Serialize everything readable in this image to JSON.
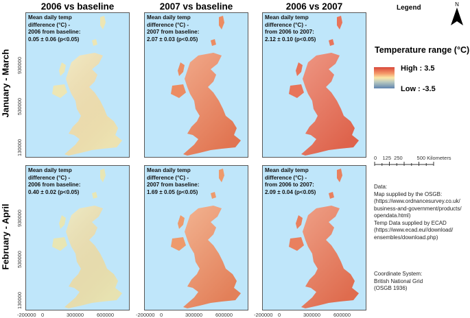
{
  "columns": [
    "2006 vs baseline",
    "2007 vs baseline",
    "2006 vs 2007"
  ],
  "rows": [
    "January - March",
    "February - April"
  ],
  "panels": [
    [
      "Mean daily temp\ndifference (°C) -\n2006 from baseline:\n0.05 ± 0.06 (p<0.05)",
      "Mean daily temp\ndifference (°C) -\n2007 from baseline:\n2.07 ± 0.03 (p<0.05)",
      "Mean daily temp\ndifference (°C) -\nfrom 2006 to 2007:\n2.12 ± 0.10 (p<0.05)"
    ],
    [
      "Mean daily temp\ndifference (°C) -\n2006 from baseline:\n0.40 ± 0.02 (p<0.05)",
      "Mean daily temp\ndifference (°C) -\n2007 from baseline:\n1.69 ± 0.05 (p<0.05)",
      "Mean daily temp\ndifference (°C) -\nfrom 2006 to 2007:\n2.09 ± 0.04 (p<0.05)"
    ]
  ],
  "panel_colors": [
    [
      "#ede6b4",
      "#ec8c62",
      "#e8745a"
    ],
    [
      "#e8e6b4",
      "#ee9a6c",
      "#e9805e"
    ]
  ],
  "y_ticks": [
    "930000",
    "530000",
    "130000"
  ],
  "x_ticks": [
    "-200000",
    "0",
    "300000",
    "600000"
  ],
  "legend": {
    "title": "Legend",
    "north": "N",
    "range_title": "Temperature range (°C)",
    "high": "High : 3.5",
    "low": "Low : -3.5",
    "scale": "0    125  250          500 Kilometers"
  },
  "data_text": "Data:\nMap supplied by the OSGB:\n(https://www.ordnancesurvey.co.uk/\nbusiness-and-government/products/\nopendata.html)\nTemp Data supplied by ECAD\n(https://www.ecad.eu//download/\nensembles/download.php)",
  "coord_text": "Coordinate System:\nBritish National Grid\n(OSGB 1936)"
}
